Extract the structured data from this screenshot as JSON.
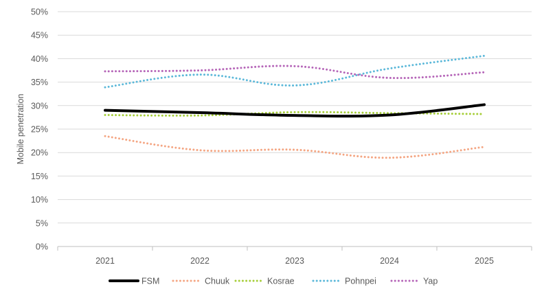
{
  "chart_data": {
    "type": "line",
    "title": "",
    "xlabel": "",
    "ylabel": "Mobile penetration",
    "x": [
      "2021",
      "2022",
      "2023",
      "2024",
      "2025"
    ],
    "ylim": [
      0,
      50
    ],
    "yticks": [
      "0%",
      "5%",
      "10%",
      "15%",
      "20%",
      "25%",
      "30%",
      "35%",
      "40%",
      "45%",
      "50%"
    ],
    "grid": true,
    "legend": "bottom",
    "series": [
      {
        "name": "FSM",
        "values": [
          29.0,
          28.5,
          27.9,
          28.0,
          30.2
        ],
        "color": "#000000",
        "style": "solid"
      },
      {
        "name": "Chuuk",
        "values": [
          23.5,
          20.5,
          20.6,
          18.9,
          21.2
        ],
        "color": "#F4A582",
        "style": "dotted"
      },
      {
        "name": "Kosrae",
        "values": [
          28.0,
          27.9,
          28.6,
          28.4,
          28.2
        ],
        "color": "#A6CE39",
        "style": "dotted"
      },
      {
        "name": "Pohnpei",
        "values": [
          33.9,
          36.6,
          34.3,
          37.9,
          40.6
        ],
        "color": "#5BB8D9",
        "style": "dotted"
      },
      {
        "name": "Yap",
        "values": [
          37.3,
          37.5,
          38.4,
          35.9,
          37.1
        ],
        "color": "#B565B8",
        "style": "dotted"
      }
    ]
  }
}
